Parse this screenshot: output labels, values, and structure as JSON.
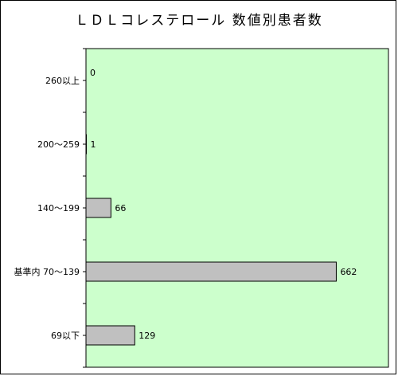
{
  "chart_data": {
    "type": "bar",
    "orientation": "horizontal",
    "title": "ＬＤＬコレステロール 数値別患者数",
    "categories": [
      "260以上",
      "200～259",
      "140～199",
      "基準内 70～139",
      "69以下"
    ],
    "values": [
      0,
      1,
      66,
      662,
      129
    ],
    "xlabel": "",
    "ylabel": "",
    "xlim": [
      0,
      800
    ],
    "grid": false,
    "legend": "none",
    "colors": {
      "plot_background": "#ccffcc",
      "bar_fill": "#c0c0c0",
      "bar_stroke": "#000000"
    }
  }
}
